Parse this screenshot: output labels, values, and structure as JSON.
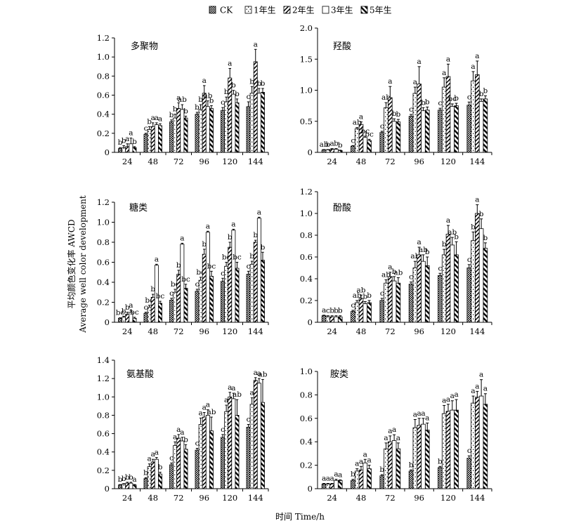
{
  "figure": {
    "xlabel": "时间 Time/h",
    "ylabel_cn": "平均颜色变化率 AWCD",
    "ylabel_en": "Average well color development"
  },
  "legend": [
    "CK",
    "1年生",
    "2年生",
    "3年生",
    "5年生"
  ],
  "chart_data": [
    {
      "type": "bar",
      "title": "多聚物",
      "categories": [
        "24",
        "48",
        "72",
        "96",
        "120",
        "144"
      ],
      "ylim": [
        0,
        1.2
      ],
      "yticks": [
        "0",
        "0.2",
        "0.4",
        "0.6",
        "0.8",
        "1.0",
        "1.2"
      ],
      "series": [
        {
          "name": "CK",
          "values": [
            0.04,
            0.19,
            0.32,
            0.4,
            0.44,
            0.48
          ],
          "errors": [
            0.01,
            0.01,
            0.02,
            0.02,
            0.03,
            0.05
          ],
          "labels": [
            "b",
            "c",
            "b",
            "b",
            "c",
            "c"
          ]
        },
        {
          "name": "1年生",
          "values": [
            0.05,
            0.24,
            0.36,
            0.45,
            0.53,
            0.62
          ],
          "errors": [
            0.02,
            0.03,
            0.04,
            0.05,
            0.05,
            0.07
          ],
          "labels": [
            "b",
            "b",
            "b",
            "b",
            "b",
            "b"
          ]
        },
        {
          "name": "2年生",
          "values": [
            0.06,
            0.27,
            0.46,
            0.62,
            0.78,
            0.95
          ],
          "errors": [
            0.03,
            0.04,
            0.06,
            0.08,
            0.1,
            0.13
          ],
          "labels": [
            "a",
            "a",
            "a",
            "a",
            "a",
            "a"
          ]
        },
        {
          "name": "3年生",
          "values": [
            0.09,
            0.29,
            0.45,
            0.48,
            0.61,
            0.62
          ],
          "errors": [
            0.06,
            0.02,
            0.05,
            0.06,
            0.04,
            0.05
          ],
          "labels": [
            "a",
            "a",
            "ab",
            "ab",
            "b",
            "b"
          ]
        },
        {
          "name": "5年生",
          "values": [
            0.05,
            0.28,
            0.36,
            0.46,
            0.52,
            0.63
          ],
          "errors": [
            0.01,
            0.02,
            0.02,
            0.03,
            0.04,
            0.04
          ],
          "labels": [
            "b",
            "a",
            "b",
            "b",
            "b",
            "b"
          ]
        }
      ]
    },
    {
      "type": "bar",
      "title": "羟酸",
      "categories": [
        "24",
        "48",
        "72",
        "96",
        "120",
        "144"
      ],
      "ylim": [
        0,
        2.0
      ],
      "yticks": [
        "0",
        "0.5",
        "1.0",
        "1.5",
        "2.0"
      ],
      "series": [
        {
          "name": "CK",
          "values": [
            0.04,
            0.1,
            0.32,
            0.58,
            0.68,
            0.76
          ],
          "errors": [
            0.005,
            0.01,
            0.02,
            0.03,
            0.03,
            0.05
          ],
          "labels": [
            "ab",
            "c",
            "c",
            "c",
            "c",
            "c"
          ]
        },
        {
          "name": "1年生",
          "values": [
            0.04,
            0.38,
            0.72,
            0.95,
            1.05,
            1.15
          ],
          "errors": [
            0.005,
            0.02,
            0.08,
            0.1,
            0.15,
            0.15
          ],
          "labels": [
            "b",
            "ab",
            "ab",
            "a",
            "a",
            "a"
          ]
        },
        {
          "name": "2年生",
          "values": [
            0.05,
            0.45,
            0.88,
            1.1,
            1.22,
            1.25
          ],
          "errors": [
            0.01,
            0.04,
            0.18,
            0.28,
            0.2,
            0.22
          ],
          "labels": [
            "a",
            "a",
            "a",
            "a",
            "a",
            "a"
          ]
        },
        {
          "name": "3年生",
          "values": [
            0.05,
            0.24,
            0.5,
            0.67,
            0.74,
            0.82
          ],
          "errors": [
            0.01,
            0.02,
            0.04,
            0.05,
            0.04,
            0.04
          ],
          "labels": [
            "b",
            "bc",
            "b",
            "b",
            "bc",
            "b"
          ]
        },
        {
          "name": "5年生",
          "values": [
            0.03,
            0.19,
            0.49,
            0.68,
            0.75,
            0.86
          ],
          "errors": [
            0.005,
            0.02,
            0.04,
            0.05,
            0.04,
            0.05
          ],
          "labels": [
            "b",
            "bc",
            "b",
            "b",
            "b",
            "b"
          ]
        }
      ]
    },
    {
      "type": "bar",
      "title": "糖类",
      "categories": [
        "24",
        "48",
        "72",
        "96",
        "120",
        "144"
      ],
      "ylim": [
        0,
        1.2
      ],
      "yticks": [
        "0",
        "0.2",
        "0.4",
        "0.6",
        "0.8",
        "1.0",
        "1.2"
      ],
      "series": [
        {
          "name": "CK",
          "values": [
            0.04,
            0.09,
            0.22,
            0.31,
            0.41,
            0.48
          ],
          "errors": [
            0.005,
            0.01,
            0.02,
            0.02,
            0.03,
            0.03
          ],
          "labels": [
            "bc",
            "c",
            "c",
            "c",
            "c",
            "c"
          ]
        },
        {
          "name": "1年生",
          "values": [
            0.05,
            0.15,
            0.3,
            0.42,
            0.56,
            0.58
          ],
          "errors": [
            0.01,
            0.02,
            0.03,
            0.03,
            0.04,
            0.03
          ],
          "labels": [
            "b",
            "bc",
            "bc",
            "bc",
            "bc",
            "b"
          ]
        },
        {
          "name": "2年生",
          "values": [
            0.08,
            0.25,
            0.48,
            0.68,
            0.75,
            0.8
          ],
          "errors": [
            0.02,
            0.03,
            0.04,
            0.05,
            0.05,
            0.02
          ],
          "labels": [
            "b",
            "b",
            "b",
            "b",
            "b",
            "b"
          ]
        },
        {
          "name": "3年生",
          "values": [
            0.1,
            0.57,
            0.78,
            0.9,
            0.92,
            1.04
          ],
          "errors": [
            0.02,
            0.01,
            0.01,
            0.01,
            0.01,
            0.01
          ],
          "labels": [
            "a",
            "a",
            "a",
            "a",
            "a",
            "a"
          ]
        },
        {
          "name": "5年生",
          "values": [
            0.04,
            0.19,
            0.34,
            0.46,
            0.54,
            0.62
          ],
          "errors": [
            0.01,
            0.02,
            0.04,
            0.05,
            0.06,
            0.08
          ],
          "labels": [
            "bc",
            "bc",
            "bc",
            "bc",
            "bc",
            "b"
          ]
        }
      ]
    },
    {
      "type": "bar",
      "title": "酚酸",
      "categories": [
        "24",
        "48",
        "72",
        "96",
        "120",
        "144"
      ],
      "ylim": [
        0,
        1.2
      ],
      "yticks": [
        "0",
        "0.2",
        "0.4",
        "0.6",
        "0.8",
        "1.0",
        "1.2"
      ],
      "series": [
        {
          "name": "CK",
          "values": [
            0.06,
            0.1,
            0.2,
            0.35,
            0.43,
            0.5
          ],
          "errors": [
            0.005,
            0.01,
            0.02,
            0.02,
            0.02,
            0.03
          ],
          "labels": [
            "a",
            "c",
            "c",
            "c",
            "c",
            "c"
          ]
        },
        {
          "name": "1年生",
          "values": [
            0.05,
            0.18,
            0.36,
            0.5,
            0.62,
            0.75
          ],
          "errors": [
            0.01,
            0.02,
            0.03,
            0.06,
            0.05,
            0.08
          ],
          "labels": [
            "c",
            "ab",
            "ab",
            "ab",
            "b",
            "b"
          ]
        },
        {
          "name": "2年生",
          "values": [
            0.05,
            0.22,
            0.42,
            0.62,
            0.81,
            1.0
          ],
          "errors": [
            0.01,
            0.03,
            0.04,
            0.07,
            0.08,
            0.08
          ],
          "labels": [
            "b",
            "ab",
            "a",
            "a",
            "a",
            "a"
          ]
        },
        {
          "name": "3年生",
          "values": [
            0.05,
            0.17,
            0.38,
            0.56,
            0.71,
            0.86
          ],
          "errors": [
            0.01,
            0.02,
            0.04,
            0.06,
            0.07,
            0.09
          ],
          "labels": [
            "b",
            "b",
            "b",
            "ab",
            "ab",
            "b"
          ]
        },
        {
          "name": "5年生",
          "values": [
            0.05,
            0.18,
            0.36,
            0.52,
            0.62,
            0.68
          ],
          "errors": [
            0.01,
            0.02,
            0.05,
            0.08,
            0.12,
            0.05
          ],
          "labels": [
            "b",
            "b",
            "ab",
            "b",
            "b",
            "b"
          ]
        }
      ]
    },
    {
      "type": "bar",
      "title": "氨基酸",
      "categories": [
        "24",
        "48",
        "72",
        "96",
        "120",
        "144"
      ],
      "ylim": [
        0,
        1.4
      ],
      "yticks": [
        "0",
        "0.2",
        "0.4",
        "0.6",
        "0.8",
        "1.0",
        "1.2",
        "1.4"
      ],
      "series": [
        {
          "name": "CK",
          "values": [
            0.04,
            0.11,
            0.26,
            0.42,
            0.56,
            0.67
          ],
          "errors": [
            0.005,
            0.01,
            0.02,
            0.02,
            0.03,
            0.03
          ],
          "labels": [
            "b",
            "b",
            "c",
            "c",
            "c",
            "c"
          ]
        },
        {
          "name": "1年生",
          "values": [
            0.05,
            0.24,
            0.47,
            0.7,
            0.84,
            0.92
          ],
          "errors": [
            0.005,
            0.03,
            0.04,
            0.07,
            0.07,
            0.07
          ],
          "labels": [
            "b",
            "a",
            "a",
            "a",
            "a",
            "a"
          ]
        },
        {
          "name": "2年生",
          "values": [
            0.06,
            0.29,
            0.55,
            0.78,
            1.0,
            1.18
          ],
          "errors": [
            0.01,
            0.03,
            0.04,
            0.05,
            0.05,
            0.03
          ],
          "labels": [
            "b",
            "a",
            "a",
            "a",
            "a",
            "a"
          ]
        },
        {
          "name": "3年生",
          "values": [
            0.06,
            0.32,
            0.52,
            0.8,
            0.98,
            1.15
          ],
          "errors": [
            0.01,
            0.02,
            0.04,
            0.06,
            0.06,
            0.05
          ],
          "labels": [
            "b",
            "a",
            "a",
            "a",
            "a",
            "a"
          ]
        },
        {
          "name": "5年生",
          "values": [
            0.04,
            0.16,
            0.43,
            0.63,
            0.8,
            0.94
          ],
          "errors": [
            0.005,
            0.02,
            0.05,
            0.15,
            0.17,
            0.25
          ],
          "labels": [
            "a",
            "b",
            "b",
            "ab",
            "ab",
            "ab"
          ]
        }
      ]
    },
    {
      "type": "bar",
      "title": "胺类",
      "categories": [
        "24",
        "48",
        "72",
        "96",
        "120",
        "144"
      ],
      "ylim": [
        0,
        1.0
      ],
      "yticks": [
        "0",
        "0.2",
        "0.4",
        "0.6",
        "0.8",
        "1.0"
      ],
      "series": [
        {
          "name": "CK",
          "values": [
            0.04,
            0.07,
            0.11,
            0.15,
            0.18,
            0.26
          ],
          "errors": [
            0.005,
            0.01,
            0.01,
            0.01,
            0.01,
            0.02
          ],
          "labels": [
            "a",
            "b",
            "b",
            "b",
            "b",
            "c"
          ]
        },
        {
          "name": "1年生",
          "values": [
            0.04,
            0.15,
            0.34,
            0.52,
            0.64,
            0.73
          ],
          "errors": [
            0.005,
            0.02,
            0.05,
            0.07,
            0.07,
            0.06
          ],
          "labels": [
            "a",
            "a",
            "a",
            "a",
            "a",
            "a"
          ]
        },
        {
          "name": "2年生",
          "values": [
            0.04,
            0.16,
            0.4,
            0.54,
            0.66,
            0.78
          ],
          "errors": [
            0.005,
            0.03,
            0.05,
            0.06,
            0.06,
            0.05
          ],
          "labels": [
            "a",
            "a",
            "a",
            "a",
            "a",
            "a"
          ]
        },
        {
          "name": "3年生",
          "values": [
            0.07,
            0.22,
            0.41,
            0.55,
            0.67,
            0.79
          ],
          "errors": [
            0.01,
            0.03,
            0.05,
            0.05,
            0.08,
            0.14
          ],
          "labels": [
            "a",
            "a",
            "a",
            "a",
            "a",
            "a"
          ]
        },
        {
          "name": "5年生",
          "values": [
            0.07,
            0.17,
            0.34,
            0.5,
            0.67,
            0.72
          ],
          "errors": [
            0.005,
            0.03,
            0.05,
            0.06,
            0.09,
            0.09
          ],
          "labels": [
            "a",
            "a",
            "a",
            "a",
            "a",
            "a"
          ]
        }
      ]
    }
  ]
}
